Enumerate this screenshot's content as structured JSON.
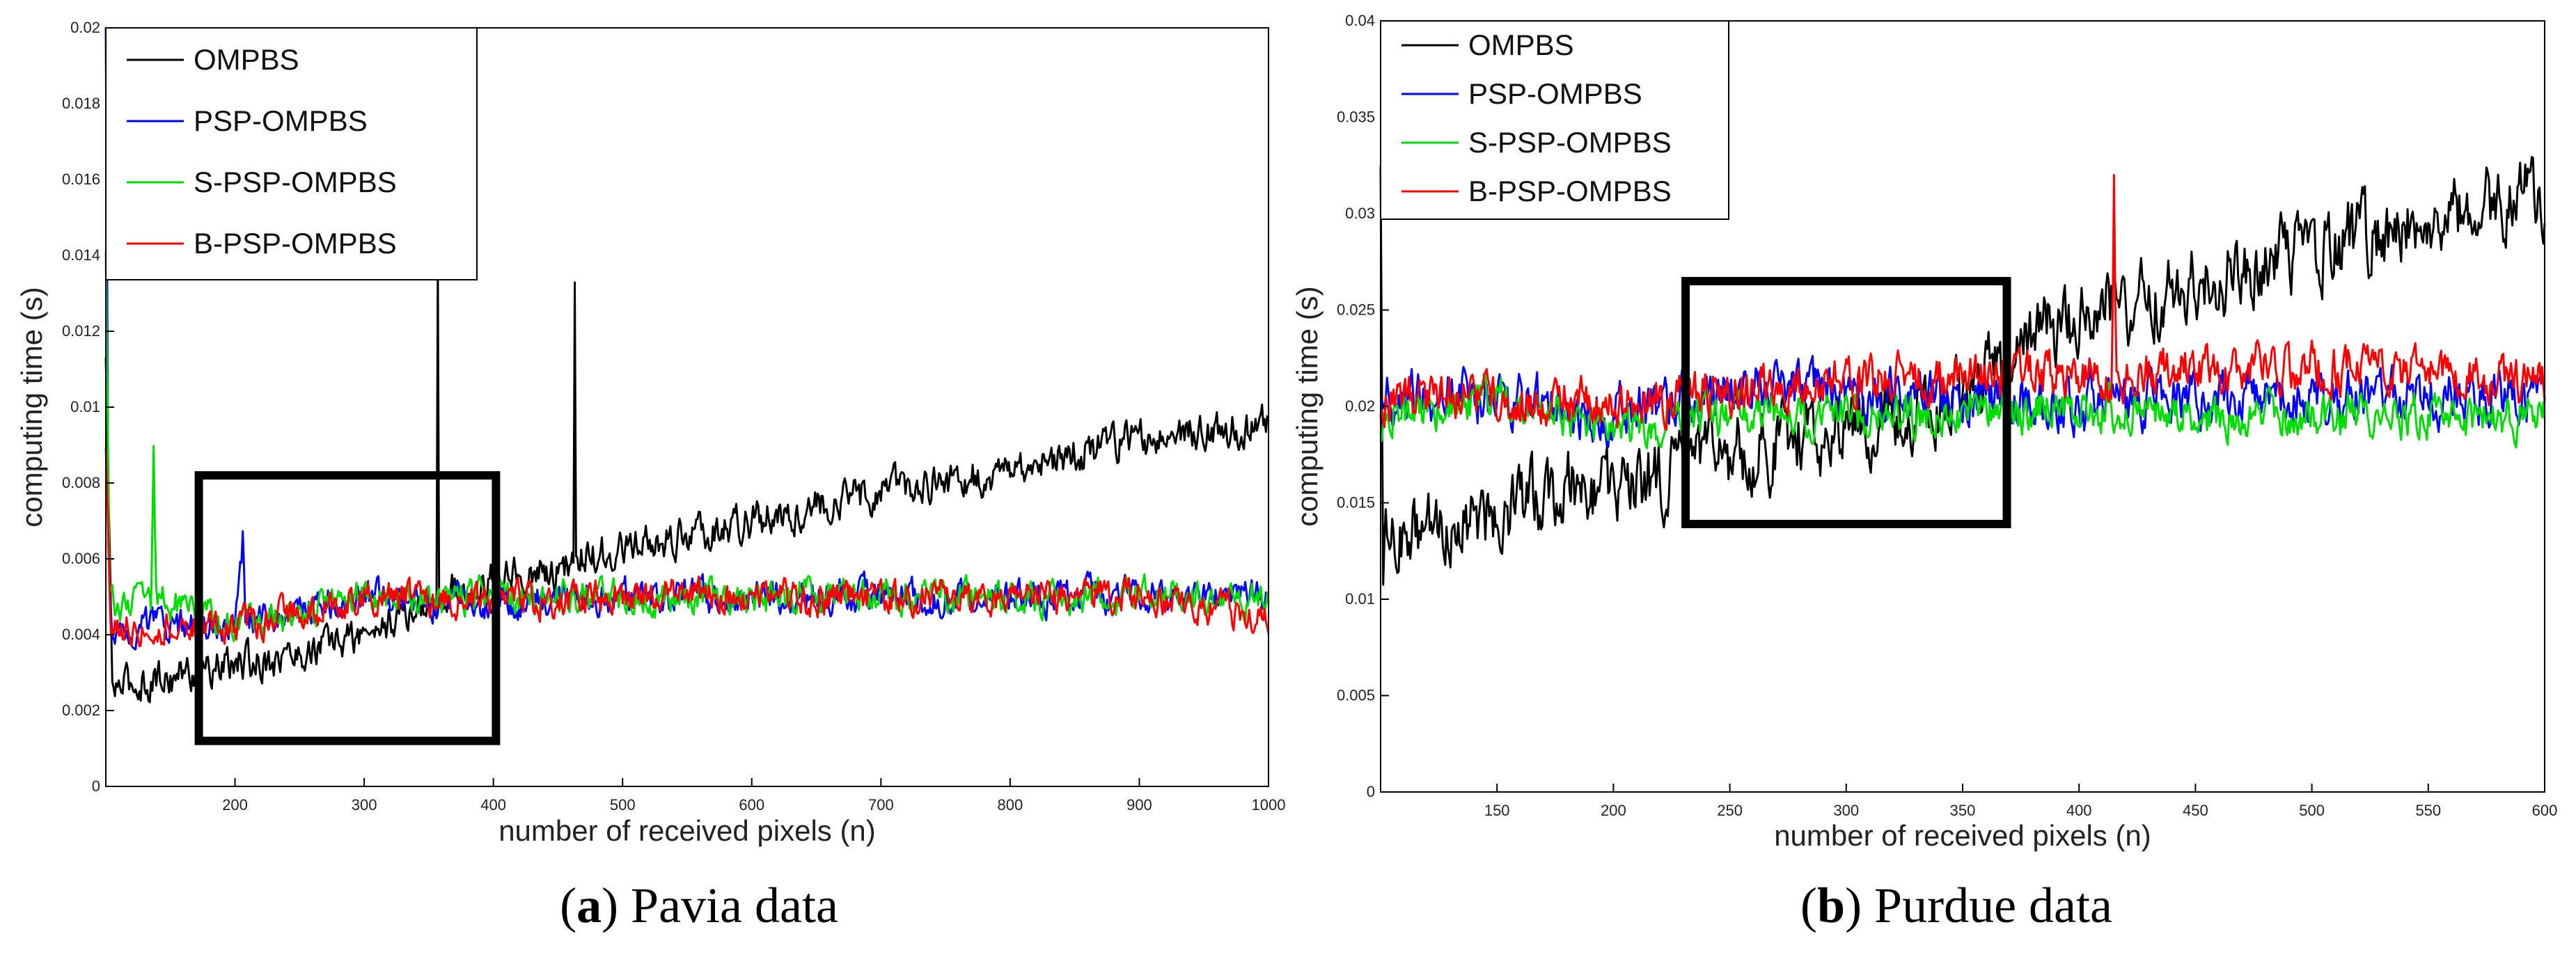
{
  "figure": {
    "captions": [
      {
        "letter": "a",
        "text": ") Pavia data",
        "open": "("
      },
      {
        "letter": "b",
        "text": ") Purdue data",
        "open": "("
      }
    ]
  },
  "chart_data": [
    {
      "type": "line",
      "panel": "a",
      "title": "",
      "xlabel": "number of received pixels (n)",
      "ylabel": "computing time (s)",
      "xlim": [
        100,
        1000
      ],
      "ylim": [
        0,
        0.02
      ],
      "xticks": [
        200,
        300,
        400,
        500,
        600,
        700,
        800,
        900,
        1000
      ],
      "xtick_labels": [
        "200",
        "300",
        "400",
        "500",
        "600",
        "700",
        "800",
        "900",
        "1000"
      ],
      "yticks": [
        0,
        0.002,
        0.004,
        0.006,
        0.008,
        0.01,
        0.012,
        0.014,
        0.016,
        0.018,
        0.02
      ],
      "ytick_labels": [
        "0",
        "0.002",
        "0.004",
        "0.006",
        "0.008",
        "0.01",
        "0.012",
        "0.014",
        "0.016",
        "0.018",
        "0.02"
      ],
      "legend_position": "top-left",
      "highlight_box": {
        "x": [
          172,
          402
        ],
        "y": [
          0.0012,
          0.0082
        ]
      },
      "series": [
        {
          "name": "OMPBS",
          "color": "#000000",
          "x": [
            100,
            105,
            150,
            200,
            250,
            300,
            350,
            356,
            357,
            358,
            400,
            462,
            463,
            464,
            500,
            600,
            700,
            800,
            900,
            1000
          ],
          "y": [
            0.0112,
            0.0026,
            0.0029,
            0.0032,
            0.0035,
            0.004,
            0.0048,
            0.0048,
            0.0135,
            0.005,
            0.0055,
            0.0058,
            0.013,
            0.006,
            0.0062,
            0.007,
            0.0078,
            0.0083,
            0.0092,
            0.0095
          ],
          "noise": 0.0009
        },
        {
          "name": "PSP-OMPBS",
          "color": "#0000ff",
          "x": [
            100,
            102,
            105,
            200,
            206,
            208,
            300,
            400,
            500,
            600,
            700,
            800,
            900,
            1000
          ],
          "y": [
            0.02,
            0.006,
            0.0042,
            0.0042,
            0.0065,
            0.0043,
            0.005,
            0.0048,
            0.005,
            0.005,
            0.005,
            0.005,
            0.005,
            0.005
          ],
          "noise": 0.0008
        },
        {
          "name": "S-PSP-OMPBS",
          "color": "#00dd00",
          "x": [
            100,
            103,
            135,
            137,
            139,
            200,
            300,
            400,
            500,
            600,
            700,
            800,
            900,
            1000
          ],
          "y": [
            0.014,
            0.0048,
            0.0048,
            0.0088,
            0.005,
            0.0042,
            0.005,
            0.005,
            0.005,
            0.005,
            0.005,
            0.005,
            0.005,
            0.005
          ],
          "noise": 0.0008
        },
        {
          "name": "B-PSP-OMPBS",
          "color": "#ff0000",
          "x": [
            100,
            104,
            200,
            300,
            400,
            500,
            600,
            700,
            800,
            900,
            1000
          ],
          "y": [
            0.0088,
            0.0042,
            0.0042,
            0.005,
            0.0048,
            0.005,
            0.005,
            0.005,
            0.005,
            0.005,
            0.0045
          ],
          "noise": 0.0008
        }
      ]
    },
    {
      "type": "line",
      "panel": "b",
      "title": "",
      "xlabel": "number of received pixels (n)",
      "ylabel": "computing time (s)",
      "xlim": [
        100,
        600
      ],
      "ylim": [
        0,
        0.04
      ],
      "xticks": [
        150,
        200,
        250,
        300,
        350,
        400,
        450,
        500,
        550,
        600
      ],
      "xtick_labels": [
        "150",
        "200",
        "250",
        "300",
        "350",
        "400",
        "450",
        "500",
        "550",
        "600"
      ],
      "yticks": [
        0,
        0.005,
        0.01,
        0.015,
        0.02,
        0.025,
        0.03,
        0.035,
        0.04
      ],
      "ytick_labels": [
        "0",
        "0.005",
        "0.01",
        "0.015",
        "0.02",
        "0.025",
        "0.03",
        "0.035",
        "0.04"
      ],
      "legend_position": "top-left",
      "highlight_box": {
        "x": [
          231,
          369
        ],
        "y": [
          0.0139,
          0.0265
        ]
      },
      "series": [
        {
          "name": "OMPBS",
          "color": "#000000",
          "x": [
            100,
            101,
            150,
            180,
            200,
            250,
            300,
            350,
            380,
            400,
            450,
            500,
            550,
            600
          ],
          "y": [
            0.034,
            0.013,
            0.0145,
            0.016,
            0.0155,
            0.0175,
            0.019,
            0.0205,
            0.0235,
            0.0245,
            0.0265,
            0.028,
            0.03,
            0.031
          ],
          "noise": 0.0035
        },
        {
          "name": "PSP-OMPBS",
          "color": "#0000ff",
          "x": [
            100,
            150,
            200,
            250,
            300,
            350,
            400,
            450,
            500,
            550,
            600
          ],
          "y": [
            0.0205,
            0.0205,
            0.0195,
            0.021,
            0.0205,
            0.0205,
            0.02,
            0.0205,
            0.0205,
            0.0205,
            0.0205
          ],
          "noise": 0.0025
        },
        {
          "name": "S-PSP-OMPBS",
          "color": "#00dd00",
          "x": [
            100,
            150,
            200,
            250,
            300,
            350,
            400,
            450,
            500,
            550,
            600
          ],
          "y": [
            0.0195,
            0.0205,
            0.019,
            0.0195,
            0.0195,
            0.0195,
            0.02,
            0.0195,
            0.0195,
            0.0195,
            0.0195
          ],
          "noise": 0.002
        },
        {
          "name": "B-PSP-OMPBS",
          "color": "#ff0000",
          "x": [
            100,
            150,
            200,
            250,
            300,
            350,
            400,
            414,
            415,
            416,
            450,
            500,
            550,
            600
          ],
          "y": [
            0.0205,
            0.0205,
            0.02,
            0.021,
            0.0215,
            0.0215,
            0.0215,
            0.0215,
            0.032,
            0.0215,
            0.022,
            0.022,
            0.022,
            0.021
          ],
          "noise": 0.0022
        }
      ]
    }
  ]
}
